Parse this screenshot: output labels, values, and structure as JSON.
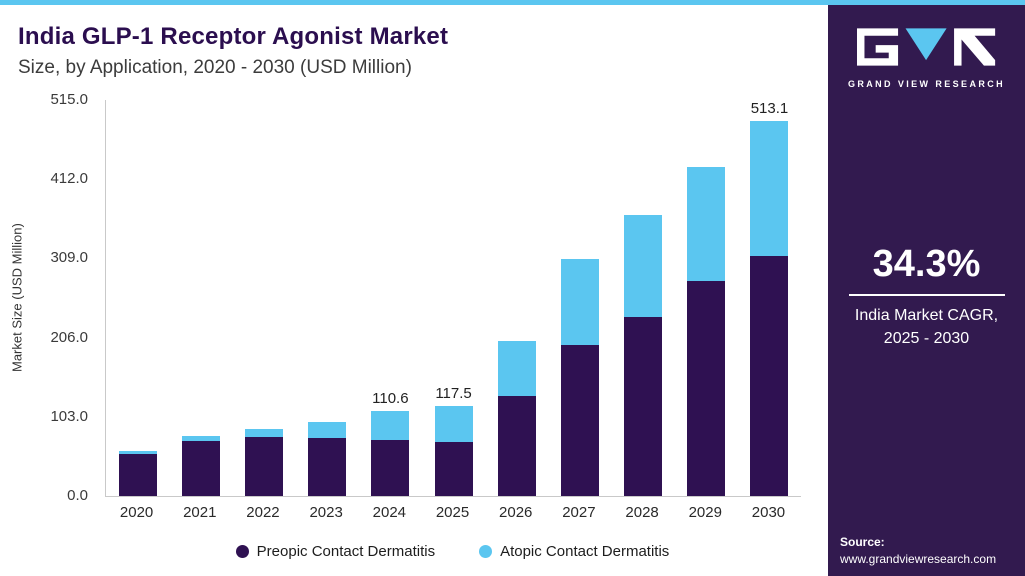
{
  "header": {
    "title": "India GLP-1 Receptor Agonist Market",
    "subtitle": "Size, by Application, 2020 - 2030 (USD Million)"
  },
  "chart_data": {
    "type": "bar",
    "stacked": true,
    "title": "India GLP-1 Receptor Agonist Market Size, by Application, 2020 - 2030 (USD Million)",
    "xlabel": "",
    "ylabel": "Market Size (USD Million)",
    "categories": [
      "2020",
      "2021",
      "2022",
      "2023",
      "2024",
      "2025",
      "2026",
      "2027",
      "2028",
      "2029",
      "2030"
    ],
    "series": [
      {
        "name": "Preopic Contact Dermatitis",
        "color": "#2f1152",
        "values": [
          55,
          71,
          77,
          75,
          73,
          70,
          130,
          197,
          233,
          280,
          328
        ]
      },
      {
        "name": "Atopic Contact Dermatitis",
        "color": "#5bc6f0",
        "values": [
          4,
          7,
          10,
          21,
          37.6,
          47.5,
          72,
          111,
          133,
          148,
          185.1
        ]
      }
    ],
    "totals": [
      59,
      78,
      87,
      96,
      110.6,
      117.5,
      202,
      308,
      366,
      428,
      513.1
    ],
    "total_labels": {
      "2024": "110.6",
      "2025": "117.5",
      "2030": "513.1"
    },
    "ytick_labels": [
      "0.0",
      "103.0",
      "206.0",
      "309.0",
      "412.0",
      "515.0"
    ],
    "ytick_values": [
      0,
      103,
      206,
      309,
      412,
      515
    ],
    "ylim": [
      0,
      515
    ],
    "grid": false,
    "legend_position": "bottom"
  },
  "sidebar": {
    "brand_name": "GRAND VIEW RESEARCH",
    "cagr_value": "34.3%",
    "cagr_label_line1": "India Market CAGR,",
    "cagr_label_line2": "2025 - 2030",
    "source_label": "Source:",
    "source_url": "www.grandviewresearch.com",
    "bg_color": "#321a4f",
    "accent_color": "#5bc6f0"
  }
}
